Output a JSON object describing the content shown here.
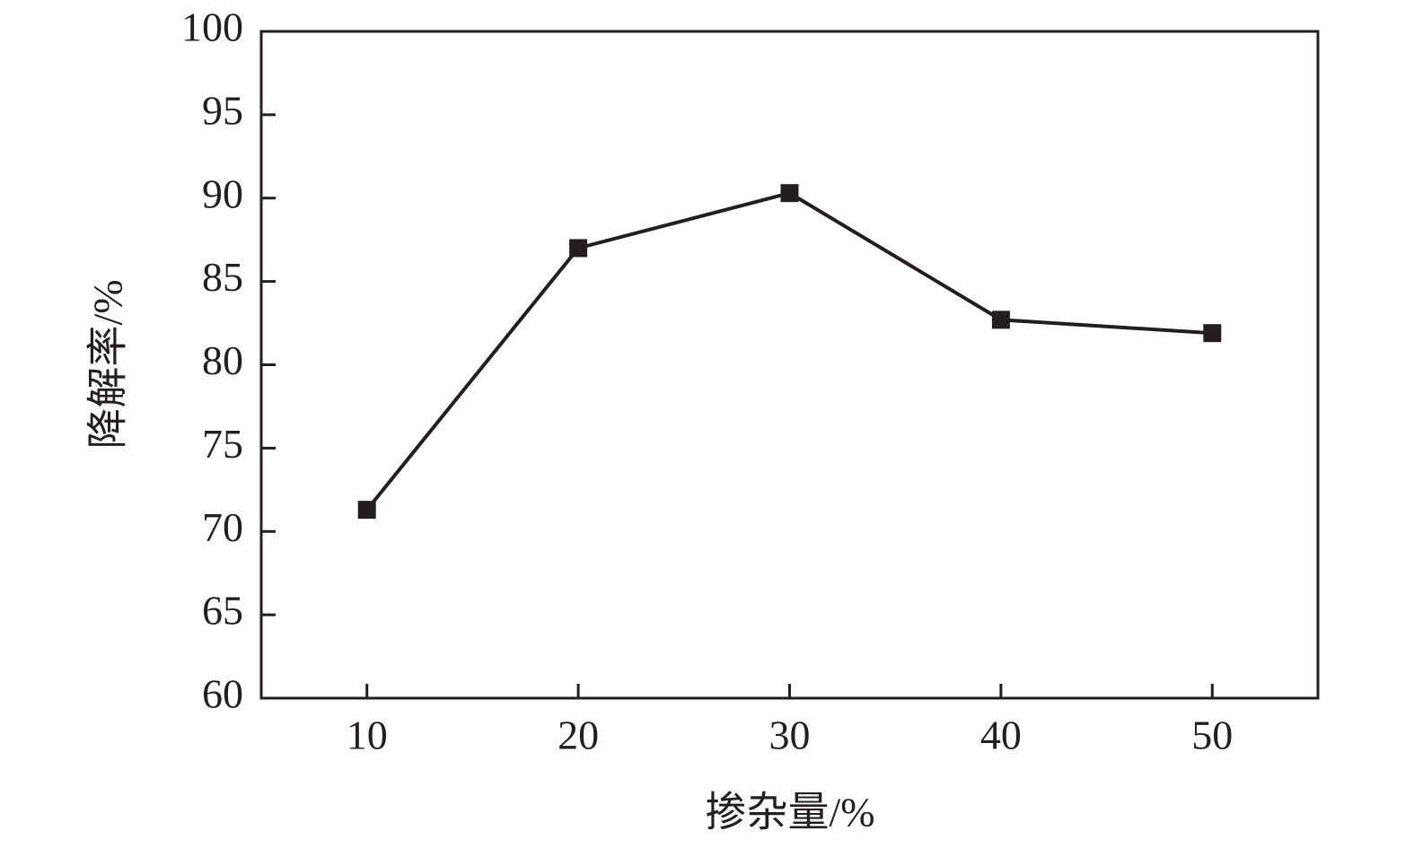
{
  "chart_data": {
    "type": "line",
    "xlabel": "掺杂量/%",
    "ylabel": "降解率/%",
    "x": [
      10,
      20,
      30,
      40,
      50
    ],
    "values": [
      71.3,
      87.0,
      90.3,
      82.7,
      81.9
    ],
    "color": "#231f20",
    "xlim": [
      5,
      55
    ],
    "xticks": [
      10,
      20,
      30,
      40,
      50
    ],
    "ylim": [
      60,
      100
    ],
    "yticks": [
      60,
      65,
      70,
      75,
      80,
      85,
      90,
      95,
      100
    ],
    "grid": false
  }
}
